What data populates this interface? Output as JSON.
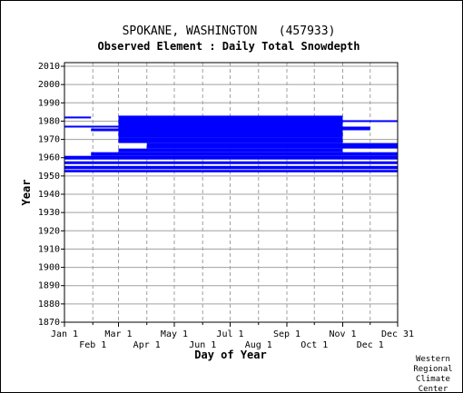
{
  "header": {
    "title": "SPOKANE, WASHINGTON   (457933)",
    "subtitle": "Observed Element : Daily Total Snowdepth"
  },
  "credit": [
    "Western",
    "Regional",
    "Climate",
    "Center"
  ],
  "colors": {
    "data": "#0000ff",
    "grid": "#a0a0a0",
    "axis": "#000000"
  },
  "chart_data": {
    "type": "heatmap",
    "xlabel": "Day of Year",
    "ylabel": "Year",
    "xlim": [
      1,
      365
    ],
    "ylim": [
      1870,
      2012
    ],
    "grid": true,
    "x_ticks_upper": [
      {
        "label": "Jan 1",
        "day": 1
      },
      {
        "label": "Mar 1",
        "day": 60
      },
      {
        "label": "May 1",
        "day": 121
      },
      {
        "label": "Jul 1",
        "day": 182
      },
      {
        "label": "Sep 1",
        "day": 244
      },
      {
        "label": "Nov 1",
        "day": 305
      },
      {
        "label": "Dec 31",
        "day": 365
      }
    ],
    "x_ticks_lower": [
      {
        "label": "Feb 1",
        "day": 32
      },
      {
        "label": "Apr 1",
        "day": 91
      },
      {
        "label": "Jun 1",
        "day": 152
      },
      {
        "label": "Aug 1",
        "day": 213
      },
      {
        "label": "Oct 1",
        "day": 274
      },
      {
        "label": "Dec 1",
        "day": 335
      }
    ],
    "y_ticks": [
      1870,
      1880,
      1890,
      1900,
      1910,
      1920,
      1930,
      1940,
      1950,
      1960,
      1970,
      1980,
      1990,
      2000,
      2010
    ],
    "observed_periods": [
      {
        "start_day": 1,
        "end_day": 365,
        "start_year": 1952,
        "end_year": 1953.3
      },
      {
        "start_day": 1,
        "end_day": 365,
        "start_year": 1953.7,
        "end_year": 1955.5
      },
      {
        "start_day": 1,
        "end_day": 365,
        "start_year": 1956.5,
        "end_year": 1958
      },
      {
        "start_day": 1,
        "end_day": 365,
        "start_year": 1959,
        "end_year": 1961
      },
      {
        "start_day": 30,
        "end_day": 365,
        "start_year": 1961,
        "end_year": 1963
      },
      {
        "start_day": 60,
        "end_day": 305,
        "start_year": 1963,
        "end_year": 1965
      },
      {
        "start_day": 91,
        "end_day": 365,
        "start_year": 1965,
        "end_year": 1968
      },
      {
        "start_day": 60,
        "end_day": 305,
        "start_year": 1968,
        "end_year": 1971
      },
      {
        "start_day": 60,
        "end_day": 305,
        "start_year": 1971,
        "end_year": 1983
      },
      {
        "start_day": 1,
        "end_day": 60,
        "start_year": 1976.5,
        "end_year": 1977.5
      },
      {
        "start_day": 30,
        "end_day": 60,
        "start_year": 1974.5,
        "end_year": 1976
      },
      {
        "start_day": 305,
        "end_day": 335,
        "start_year": 1975,
        "end_year": 1977
      },
      {
        "start_day": 1,
        "end_day": 30,
        "start_year": 1981.5,
        "end_year": 1982.5
      },
      {
        "start_day": 305,
        "end_day": 365,
        "start_year": 1979.5,
        "end_year": 1980.5
      }
    ]
  }
}
